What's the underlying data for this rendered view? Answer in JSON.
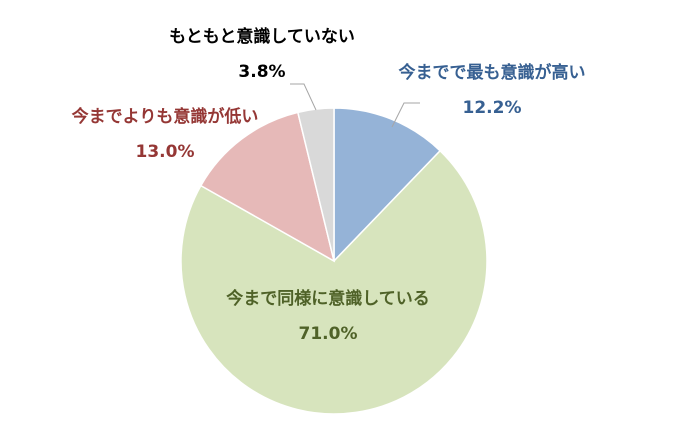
{
  "chart_data": {
    "type": "pie",
    "title": "",
    "start_angle_deg": 0,
    "direction": "clockwise",
    "slices": [
      {
        "name": "今までで最も意識が高い",
        "value": 12.2,
        "value_label": "12.2%",
        "color": "#95b3d7",
        "label_color": "#376092"
      },
      {
        "name": "今まで同様に意識している",
        "value": 71.0,
        "value_label": "71.0%",
        "color": "#d7e4bd",
        "label_color": "#4f6228"
      },
      {
        "name": "今までよりも意識が低い",
        "value": 13.0,
        "value_label": "13.0%",
        "color": "#e6b9b8",
        "label_color": "#953735"
      },
      {
        "name": "もともと意識していない",
        "value": 3.8,
        "value_label": "3.8%",
        "color": "#d9d9d9",
        "label_color": "#000000"
      }
    ]
  }
}
